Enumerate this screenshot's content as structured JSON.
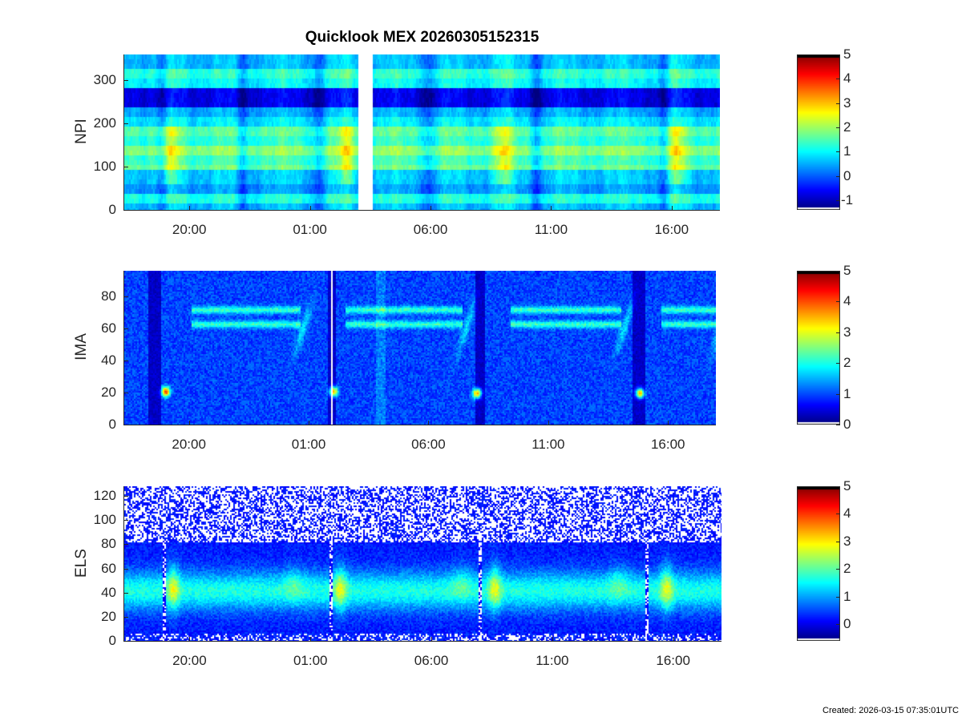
{
  "figure": {
    "title": "Quicklook MEX 20260305152315",
    "footer": "Created: 2026-03-15 07:35:01UTC"
  },
  "chart_data": [
    {
      "type": "heatmap",
      "id": "npi",
      "ylabel": "NPI",
      "x_ticks": [
        "20:00",
        "01:00",
        "06:00",
        "11:00",
        "16:00"
      ],
      "x_tick_hours": [
        20,
        25,
        30,
        35,
        40
      ],
      "xlim_hours": [
        17.3,
        42.0
      ],
      "ylim": [
        0,
        360
      ],
      "y_ticks": [
        0,
        100,
        200,
        300
      ],
      "colorbar": {
        "clim": [
          -1.4,
          5
        ],
        "ticks": [
          -1,
          0,
          1,
          2,
          3,
          4,
          5
        ]
      },
      "data_gap_hours": [
        27.0,
        27.6
      ]
    },
    {
      "type": "heatmap",
      "id": "ima",
      "ylabel": "IMA",
      "x_ticks": [
        "20:00",
        "01:00",
        "06:00",
        "11:00",
        "16:00"
      ],
      "x_tick_hours": [
        20,
        25,
        30,
        35,
        40
      ],
      "xlim_hours": [
        17.3,
        42.0
      ],
      "ylim": [
        0,
        96
      ],
      "y_ticks": [
        0,
        20,
        40,
        60,
        80
      ],
      "colorbar": {
        "clim": [
          0,
          5
        ],
        "ticks": [
          0,
          1,
          2,
          3,
          4,
          5
        ]
      },
      "data_gap_hours": [
        25.9,
        26.0
      ]
    },
    {
      "type": "heatmap",
      "id": "els",
      "ylabel": "ELS",
      "x_ticks": [
        "20:00",
        "01:00",
        "06:00",
        "11:00",
        "16:00"
      ],
      "x_tick_hours": [
        20,
        25,
        30,
        35,
        40
      ],
      "xlim_hours": [
        17.3,
        42.0
      ],
      "ylim": [
        0,
        128
      ],
      "y_ticks": [
        0,
        20,
        40,
        60,
        80,
        100,
        120
      ],
      "colorbar": {
        "clim": [
          -0.6,
          5
        ],
        "ticks": [
          0,
          1,
          2,
          3,
          4,
          5
        ]
      },
      "data_gap_hours": []
    }
  ]
}
